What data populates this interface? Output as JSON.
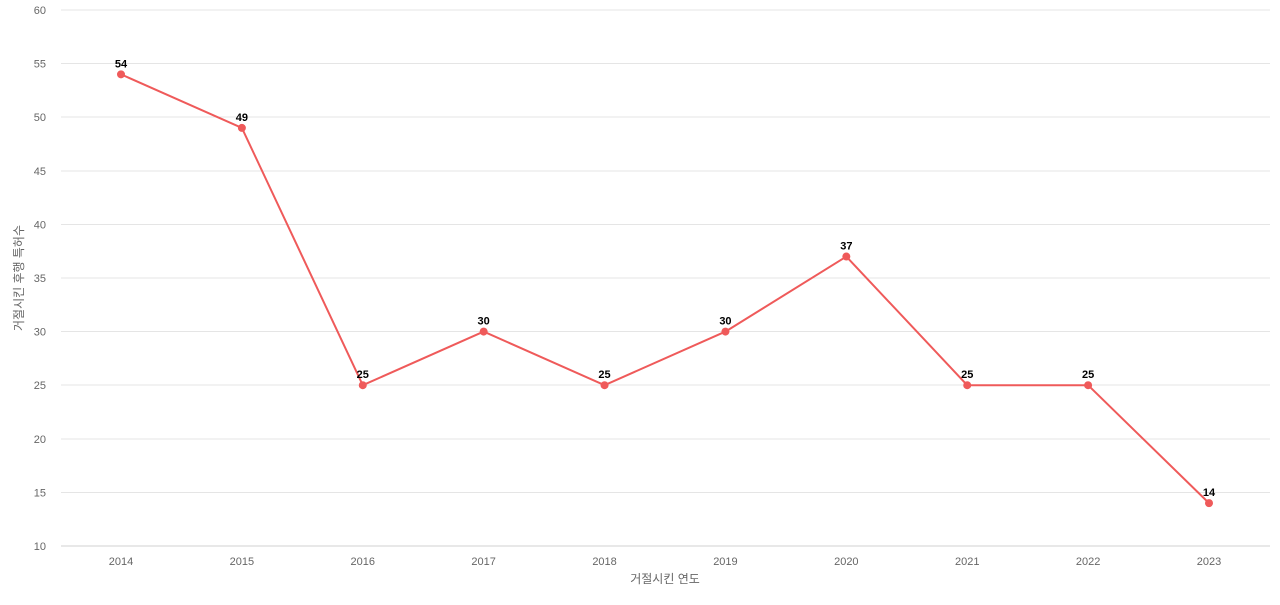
{
  "chart_data": {
    "type": "line",
    "title": "",
    "xlabel": "거절시킨 연도",
    "ylabel": "거절시킨 후행 특허수",
    "x": [
      "2014",
      "2015",
      "2016",
      "2017",
      "2018",
      "2019",
      "2020",
      "2021",
      "2022",
      "2023"
    ],
    "series": [
      {
        "values": [
          54,
          49,
          25,
          30,
          25,
          30,
          37,
          25,
          25,
          14
        ]
      }
    ],
    "ylim": [
      10,
      60
    ],
    "yticks": [
      "10",
      "15",
      "20",
      "25",
      "30",
      "35",
      "40",
      "45",
      "50",
      "55",
      "60"
    ],
    "grid": true,
    "legend": "none",
    "data_labels": true,
    "colors": {
      "line": "#ef5a5a",
      "grid": "#e5e5e5",
      "tick_text": "#666666",
      "label_text": "#000000",
      "axis_title": "#666666"
    }
  }
}
